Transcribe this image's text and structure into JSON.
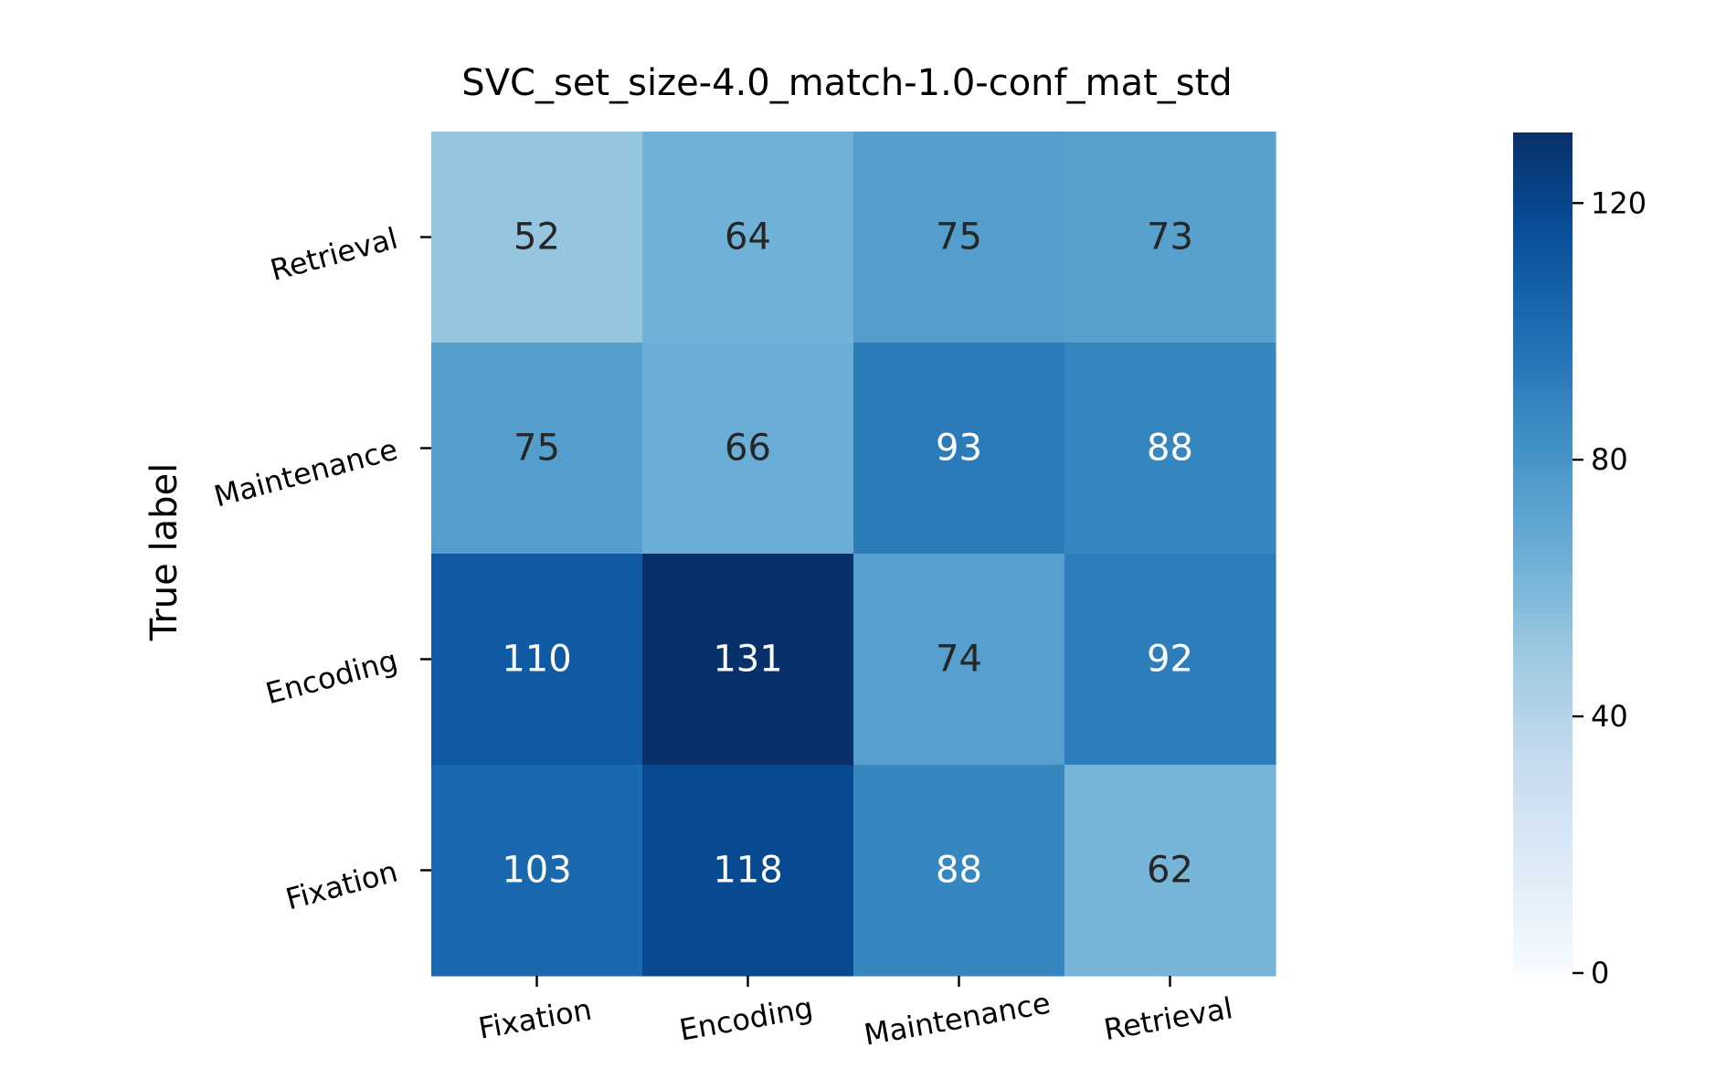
{
  "chart_data": {
    "type": "heatmap",
    "title": "SVC_set_size-4.0_match-1.0-conf_mat_std",
    "ylabel": "True label",
    "xlabel": "",
    "x_categories": [
      "Fixation",
      "Encoding",
      "Maintenance",
      "Retrieval"
    ],
    "y_categories": [
      "Retrieval",
      "Maintenance",
      "Encoding",
      "Fixation"
    ],
    "values": [
      [
        52,
        64,
        75,
        73
      ],
      [
        75,
        66,
        93,
        88
      ],
      [
        110,
        131,
        74,
        92
      ],
      [
        103,
        118,
        88,
        62
      ]
    ],
    "colormap": "Blues",
    "colorbar": {
      "range": [
        0,
        131
      ],
      "ticks": [
        0,
        40,
        80,
        120
      ],
      "tick_labels": [
        "0",
        "40",
        "80",
        "120"
      ]
    },
    "annotation_colors": {
      "light": "#ffffff",
      "dark": "#262626"
    }
  }
}
